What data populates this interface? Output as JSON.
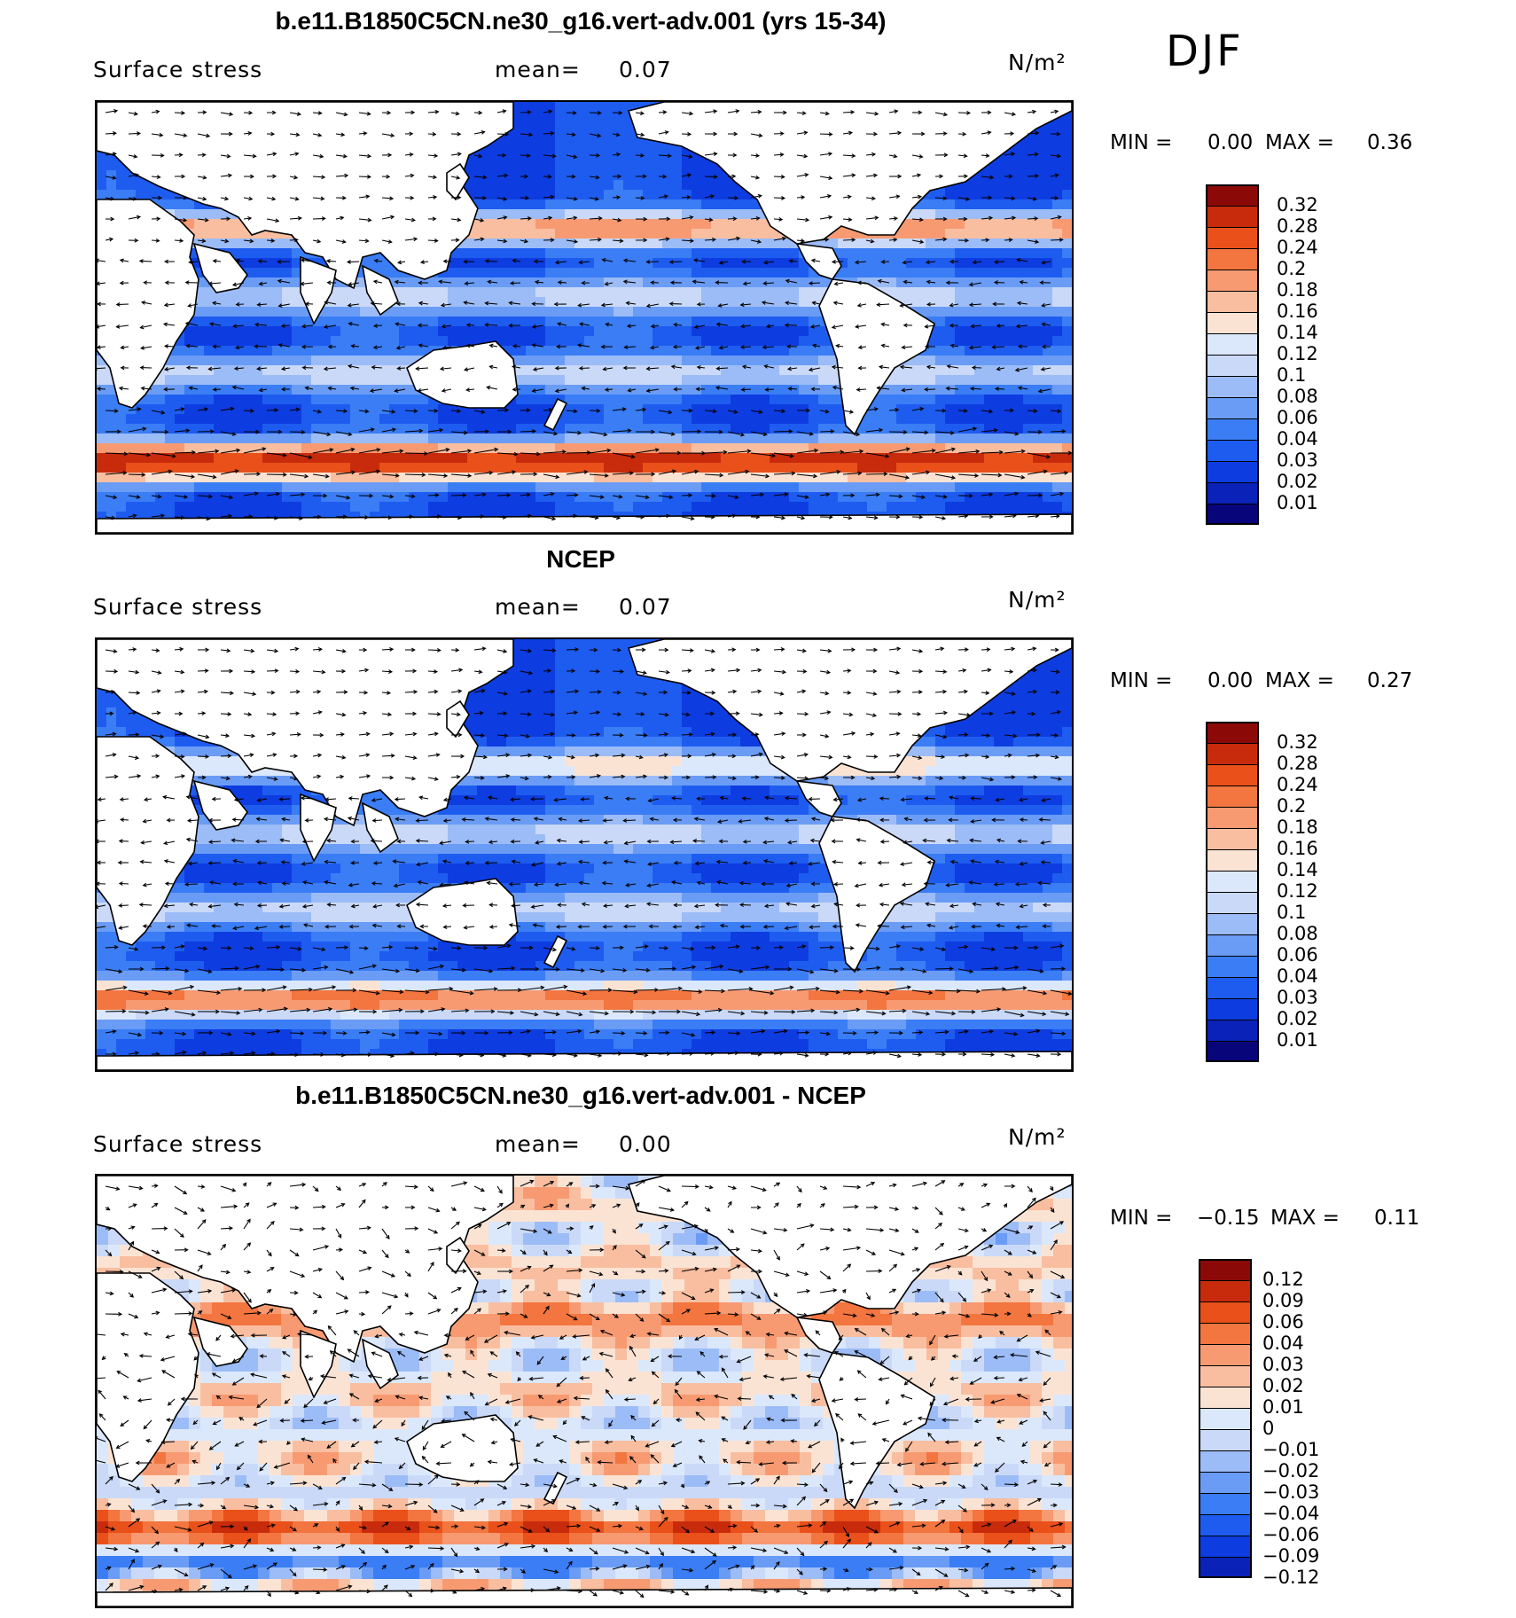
{
  "season": "DJF",
  "colors": {
    "seq": [
      "#08057a",
      "#0a22b8",
      "#0d3ce0",
      "#1e5cf0",
      "#3a7df5",
      "#6a9cf5",
      "#9cbcf7",
      "#cad9f8",
      "#dbe8fb",
      "#fbe3d4",
      "#f9bea0",
      "#f79a72",
      "#f3753f",
      "#e9501a",
      "#c82b0c",
      "#8b0a08"
    ],
    "div": [
      "#0a22b8",
      "#0d3ce0",
      "#1e5cf0",
      "#3a7df5",
      "#6a9cf5",
      "#9cbcf7",
      "#cad9f8",
      "#dbe8fb",
      "#fbe3d4",
      "#f9bea0",
      "#f79a72",
      "#f3753f",
      "#e9501a",
      "#c82b0c",
      "#8b0a08"
    ],
    "land": "#ffffff",
    "arrow": "#000000"
  },
  "panels": [
    {
      "title": "b.e11.B1850C5CN.ne30_g16.vert-adv.001 (yrs 15-34)",
      "variable": "Surface stress",
      "mean_label": "mean=",
      "mean_value": "0.07",
      "units": "N/m²",
      "min_label": "MIN =",
      "min_value": "0.00",
      "max_label": "MAX =",
      "max_value": "0.36"
    },
    {
      "title": "NCEP",
      "variable": "Surface stress",
      "mean_label": "mean=",
      "mean_value": "0.07",
      "units": "N/m²",
      "min_label": "MIN =",
      "min_value": "0.00",
      "max_label": "MAX =",
      "max_value": "0.27"
    },
    {
      "title": "b.e11.B1850C5CN.ne30_g16.vert-adv.001 - NCEP",
      "variable": "Surface stress",
      "mean_label": "mean=",
      "mean_value": "0.00",
      "units": "N/m²",
      "min_label": "MIN =",
      "min_value": "−0.15",
      "max_label": "MAX =",
      "max_value": "0.11"
    }
  ],
  "chart_data": [
    {
      "type": "heatmap",
      "title": "b.e11.B1850C5CN.ne30_g16.vert-adv.001 (yrs 15-34)",
      "field": "Surface stress magnitude with wind-stress vectors",
      "units": "N/m2",
      "mean": 0.07,
      "min": 0.0,
      "max": 0.36,
      "levels": [
        "0.01",
        "0.02",
        "0.03",
        "0.04",
        "0.06",
        "0.08",
        "0.1",
        "0.12",
        "0.14",
        "0.16",
        "0.18",
        "0.2",
        "0.24",
        "0.28",
        "0.32"
      ]
    },
    {
      "type": "heatmap",
      "title": "NCEP",
      "field": "Surface stress magnitude with wind-stress vectors",
      "units": "N/m2",
      "mean": 0.07,
      "min": 0.0,
      "max": 0.27,
      "levels": [
        "0.01",
        "0.02",
        "0.03",
        "0.04",
        "0.06",
        "0.08",
        "0.1",
        "0.12",
        "0.14",
        "0.16",
        "0.18",
        "0.2",
        "0.24",
        "0.28",
        "0.32"
      ]
    },
    {
      "type": "heatmap",
      "title": "b.e11.B1850C5CN.ne30_g16.vert-adv.001 - NCEP",
      "field": "Surface stress difference with wind-stress vectors",
      "units": "N/m2",
      "mean": 0.0,
      "min": -0.15,
      "max": 0.11,
      "levels": [
        "−0.12",
        "−0.09",
        "−0.06",
        "−0.04",
        "−0.03",
        "−0.02",
        "−0.01",
        "0",
        "0.01",
        "0.02",
        "0.03",
        "0.04",
        "0.06",
        "0.09",
        "0.12"
      ]
    }
  ]
}
